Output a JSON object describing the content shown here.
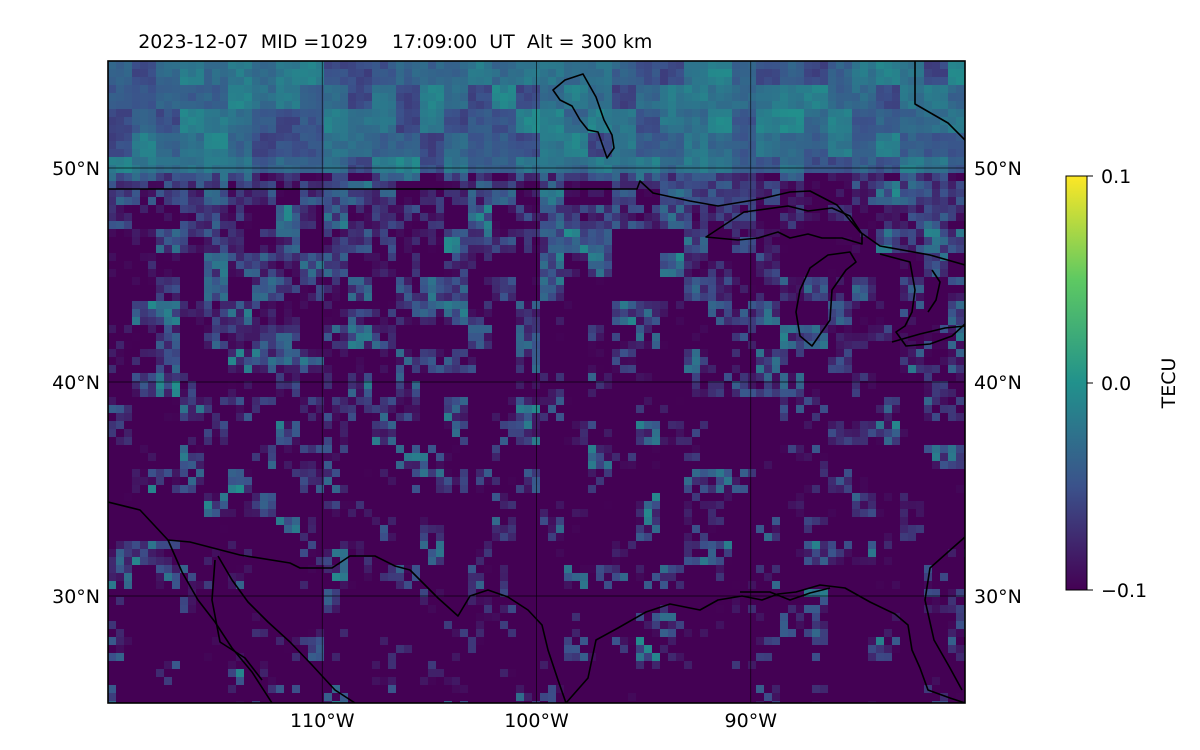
{
  "title": {
    "date": "2023-12-07",
    "mid": "MID =1029",
    "time": "17:09:00  UT",
    "alt": "Alt = 300 km"
  },
  "chart_data": {
    "type": "heatmap",
    "description_kind": "geographic TEC map",
    "lon_range": [
      -120,
      -80
    ],
    "lat_range": [
      25,
      55
    ],
    "x_ticks": [
      {
        "value": -110,
        "label": "110°W"
      },
      {
        "value": -100,
        "label": "100°W"
      },
      {
        "value": -90,
        "label": "90°W"
      }
    ],
    "y_ticks": [
      {
        "value": 30,
        "label": "30°N"
      },
      {
        "value": 40,
        "label": "40°N"
      },
      {
        "value": 50,
        "label": "50°N"
      }
    ],
    "grid": true,
    "colormap": "viridis",
    "colorbar": {
      "label": "TECU",
      "min": -0.1,
      "max": 0.1,
      "ticks": [
        {
          "value": 0.1,
          "label": "0.1"
        },
        {
          "value": 0.0,
          "label": "0.0"
        },
        {
          "value": -0.1,
          "label": "−0.1"
        }
      ],
      "colors": [
        "#440154",
        "#3b528b",
        "#21918c",
        "#5ec962",
        "#fde725"
      ]
    }
  }
}
